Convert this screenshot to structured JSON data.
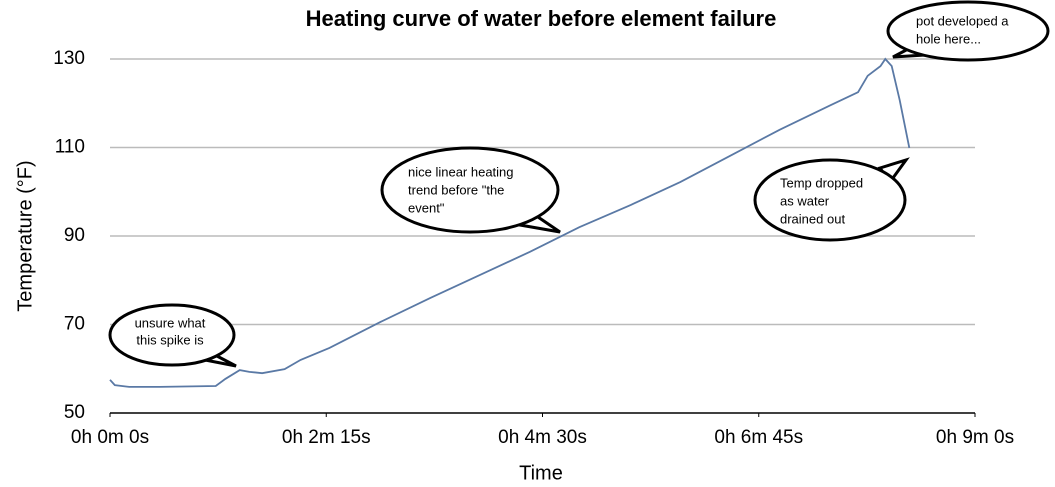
{
  "chart_data": {
    "type": "line",
    "title": "Heating curve of water before element failure",
    "x_label": "Time",
    "y_label": "Temperature (°F)",
    "x": [
      0,
      3,
      12,
      31,
      66,
      72,
      81,
      87,
      95,
      109,
      119,
      137,
      169,
      200,
      231,
      262,
      293,
      325,
      356,
      387,
      418,
      450,
      467,
      473,
      481,
      484,
      488,
      493,
      499
    ],
    "series": [
      {
        "name": "Temperature",
        "color": "#5a79a5",
        "values": [
          57.5,
          56.3,
          55.9,
          55.9,
          56.1,
          57.7,
          59.7,
          59.3,
          59.0,
          59.9,
          62,
          64.7,
          70.6,
          76,
          81.2,
          86.4,
          92,
          97,
          102.2,
          108.1,
          114,
          119.6,
          122.5,
          126.2,
          128.4,
          130,
          128.4,
          120.7,
          109.9
        ]
      }
    ],
    "xlim": [
      0,
      540
    ],
    "xticks": [
      {
        "value": 0,
        "label": "0h 0m 0s"
      },
      {
        "value": 135,
        "label": "0h 2m 15s"
      },
      {
        "value": 270,
        "label": "0h 4m 30s"
      },
      {
        "value": 405,
        "label": "0h 6m 45s"
      },
      {
        "value": 540,
        "label": "0h 9m 0s"
      }
    ],
    "ylim": [
      50,
      130
    ],
    "yticks": [
      50,
      70,
      90,
      110,
      130
    ],
    "grid": true,
    "annotations": [
      {
        "lines": [
          "unsure what",
          "this spike is"
        ]
      },
      {
        "lines": [
          "nice linear heating",
          "trend before \"the",
          "event\""
        ]
      },
      {
        "lines": [
          "pot developed a",
          "hole here..."
        ]
      },
      {
        "lines": [
          "Temp dropped",
          "as water",
          "drained out"
        ]
      }
    ]
  }
}
